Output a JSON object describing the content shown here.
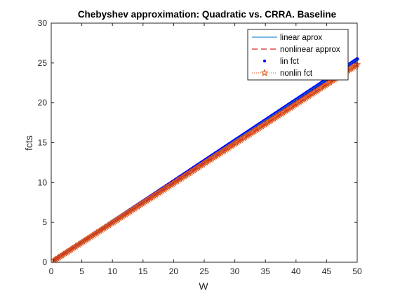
{
  "chart_data": {
    "type": "line",
    "title": "Chebyshev approximation: Quadratic vs. CRRA. Baseline",
    "xlabel": "W",
    "ylabel": "fcts",
    "xlim": [
      0,
      50
    ],
    "ylim": [
      0,
      30
    ],
    "xticks": [
      0,
      5,
      10,
      15,
      20,
      25,
      30,
      35,
      40,
      45,
      50
    ],
    "yticks": [
      0,
      5,
      10,
      15,
      20,
      25,
      30
    ],
    "grid": false,
    "legend_position": "top-right",
    "series": [
      {
        "name": "linear aprox",
        "style": "solid-line",
        "color": "#0072BD",
        "x": [
          0.5,
          50
        ],
        "y": [
          0.25,
          25.5
        ]
      },
      {
        "name": "nonlinear approx",
        "style": "dashed-line",
        "color": "#D62728",
        "x": [
          0.5,
          50
        ],
        "y": [
          0.25,
          24.8
        ]
      },
      {
        "name": "lin fct",
        "style": "dots",
        "color": "#0000FF",
        "x": [
          0.5,
          50
        ],
        "y": [
          0.25,
          25.5
        ]
      },
      {
        "name": "nonlin fct",
        "style": "dotted-star",
        "color": "#D95319",
        "x": [
          0.5,
          50
        ],
        "y": [
          0.25,
          24.8
        ]
      }
    ]
  }
}
